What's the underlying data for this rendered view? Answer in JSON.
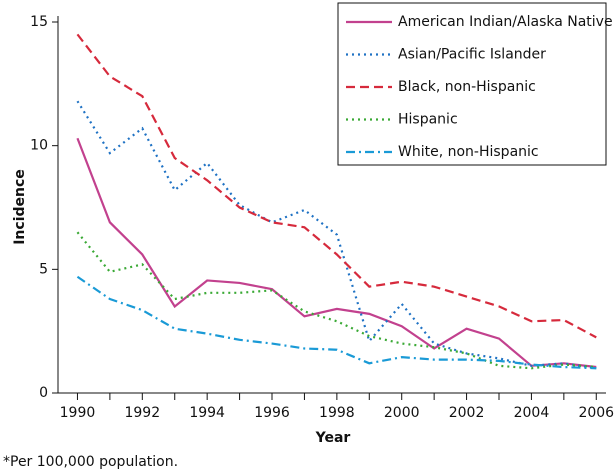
{
  "chart_data": {
    "type": "line",
    "x_label": "Year",
    "y_label": "Incidence",
    "footnote": "*Per 100,000 population.",
    "x": [
      1990,
      1991,
      1992,
      1993,
      1994,
      1995,
      1996,
      1997,
      1998,
      1999,
      2000,
      2001,
      2002,
      2003,
      2004,
      2005,
      2006
    ],
    "xlim": [
      1989.4,
      2006.3
    ],
    "xticks": [
      1990,
      1992,
      1994,
      1996,
      1998,
      2000,
      2002,
      2004,
      2006
    ],
    "xminorticks": [
      1991,
      1993,
      1995,
      1997,
      1999,
      2001,
      2003,
      2005
    ],
    "ylim": [
      0,
      15
    ],
    "yticks": [
      0,
      5,
      10,
      15
    ],
    "legend": "top-right",
    "series": [
      {
        "name": "American Indian/Alaska Native",
        "color": "#c2418e",
        "dash": "solid",
        "values": [
          10.3,
          6.9,
          5.6,
          3.5,
          4.55,
          4.45,
          4.2,
          3.1,
          3.4,
          3.2,
          2.7,
          1.8,
          2.6,
          2.2,
          1.1,
          1.2,
          1.05
        ]
      },
      {
        "name": "Asian/Pacific Islander",
        "color": "#1f72c4",
        "dash": "dotted",
        "values": [
          11.8,
          9.7,
          10.7,
          8.2,
          9.3,
          7.6,
          6.9,
          7.4,
          6.4,
          2.1,
          3.6,
          2.0,
          1.6,
          1.4,
          1.1,
          1.2,
          1.0
        ]
      },
      {
        "name": "Black, non-Hispanic",
        "color": "#d62a3c",
        "dash": "dashed",
        "values": [
          14.5,
          12.8,
          12.0,
          9.5,
          8.6,
          7.5,
          6.9,
          6.7,
          5.6,
          4.3,
          4.5,
          4.3,
          3.9,
          3.5,
          2.9,
          2.95,
          2.25
        ]
      },
      {
        "name": "Hispanic",
        "color": "#3aa935",
        "dash": "dotted",
        "values": [
          6.5,
          4.9,
          5.2,
          3.8,
          4.05,
          4.05,
          4.15,
          3.3,
          2.9,
          2.3,
          2.0,
          1.85,
          1.6,
          1.1,
          1.0,
          1.15,
          1.05
        ]
      },
      {
        "name": "White, non-Hispanic",
        "color": "#1a9ad6",
        "dash": "dashdot",
        "values": [
          4.7,
          3.8,
          3.35,
          2.6,
          2.4,
          2.15,
          2.0,
          1.8,
          1.75,
          1.2,
          1.45,
          1.35,
          1.35,
          1.3,
          1.15,
          1.05,
          1.0
        ]
      }
    ]
  }
}
